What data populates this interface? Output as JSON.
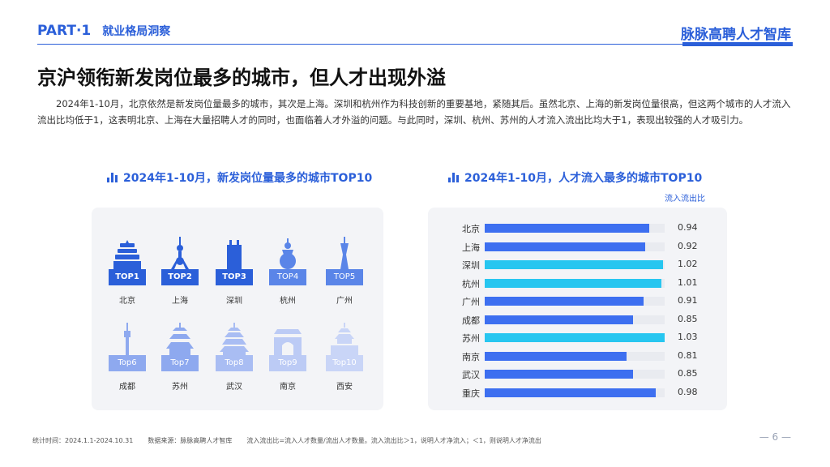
{
  "header": {
    "part": "PART·1",
    "section": "就业格局洞察",
    "brand": "脉脉高聘人才智库"
  },
  "title": "京沪领衔新发岗位最多的城市，但人才出现外溢",
  "intro": "2024年1-10月，北京依然是新发岗位量最多的城市，其次是上海。深圳和杭州作为科技创新的重要基地，紧随其后。虽然北京、上海的新发岗位量很高，但这两个城市的人才流入流出比均低于1，这表明北京、上海在大量招聘人才的同时，也面临着人才外溢的问题。与此同时，深圳、杭州、苏州的人才流入流出比均大于1，表现出较强的人才吸引力。",
  "left_panel": {
    "title": "2024年1-10月，新发岗位量最多的城市TOP10",
    "cities": [
      {
        "rank": "TOP1",
        "name": "北京",
        "color": "#2b5fd9",
        "icon": "temple-of-heaven-icon"
      },
      {
        "rank": "TOP2",
        "name": "上海",
        "color": "#2b5fd9",
        "icon": "oriental-pearl-tower-icon"
      },
      {
        "rank": "TOP3",
        "name": "深圳",
        "color": "#2b5fd9",
        "icon": "skyscraper-icon"
      },
      {
        "rank": "TOP4",
        "name": "杭州",
        "color": "#5a85e8",
        "icon": "pagoda-icon"
      },
      {
        "rank": "TOP5",
        "name": "广州",
        "color": "#5a85e8",
        "icon": "canton-tower-icon"
      },
      {
        "rank": "Top6",
        "name": "成都",
        "color": "#8ea9ef",
        "icon": "tv-tower-icon"
      },
      {
        "rank": "Top7",
        "name": "苏州",
        "color": "#8ea9ef",
        "icon": "pavilion-icon"
      },
      {
        "rank": "Top8",
        "name": "武汉",
        "color": "#a9bdf3",
        "icon": "yellow-crane-tower-icon"
      },
      {
        "rank": "Top9",
        "name": "南京",
        "color": "#bccbf5",
        "icon": "city-gate-icon"
      },
      {
        "rank": "Top10",
        "name": "西安",
        "color": "#c9d5f7",
        "icon": "bell-tower-icon"
      }
    ]
  },
  "right_panel": {
    "title": "2024年1-10月，人才流入最多的城市TOP10",
    "legend_label": "流入流出比"
  },
  "chart_data": {
    "type": "bar",
    "orientation": "horizontal",
    "title": "2024年1-10月，人才流入最多的城市TOP10",
    "ylabel": "",
    "xlabel": "流入流出比",
    "xlim": [
      0,
      1.03
    ],
    "categories": [
      "北京",
      "上海",
      "深圳",
      "杭州",
      "广州",
      "成都",
      "苏州",
      "南京",
      "武汉",
      "重庆"
    ],
    "values": [
      0.94,
      0.92,
      1.02,
      1.01,
      0.91,
      0.85,
      1.03,
      0.81,
      0.85,
      0.98
    ],
    "value_labels": [
      "0.94",
      "0.92",
      "1.02",
      "1.01",
      "0.91",
      "0.85",
      "1.03",
      "0.81",
      "0.85",
      "0.98"
    ],
    "colors": {
      "below_one": "#3d6ff0",
      "above_one": "#27c6f0",
      "track": "#e9ebf0"
    },
    "grid": false,
    "legend": "none"
  },
  "footer": {
    "stat_time": "统计时间：2024.1.1-2024.10.31",
    "source": "数据来源：脉脉高聘人才智库",
    "note": "流入流出比=流入人才数量/流出人才数量。流入流出比＞1，说明人才净流入；＜1，则说明人才净流出",
    "page": "— 6 —"
  }
}
